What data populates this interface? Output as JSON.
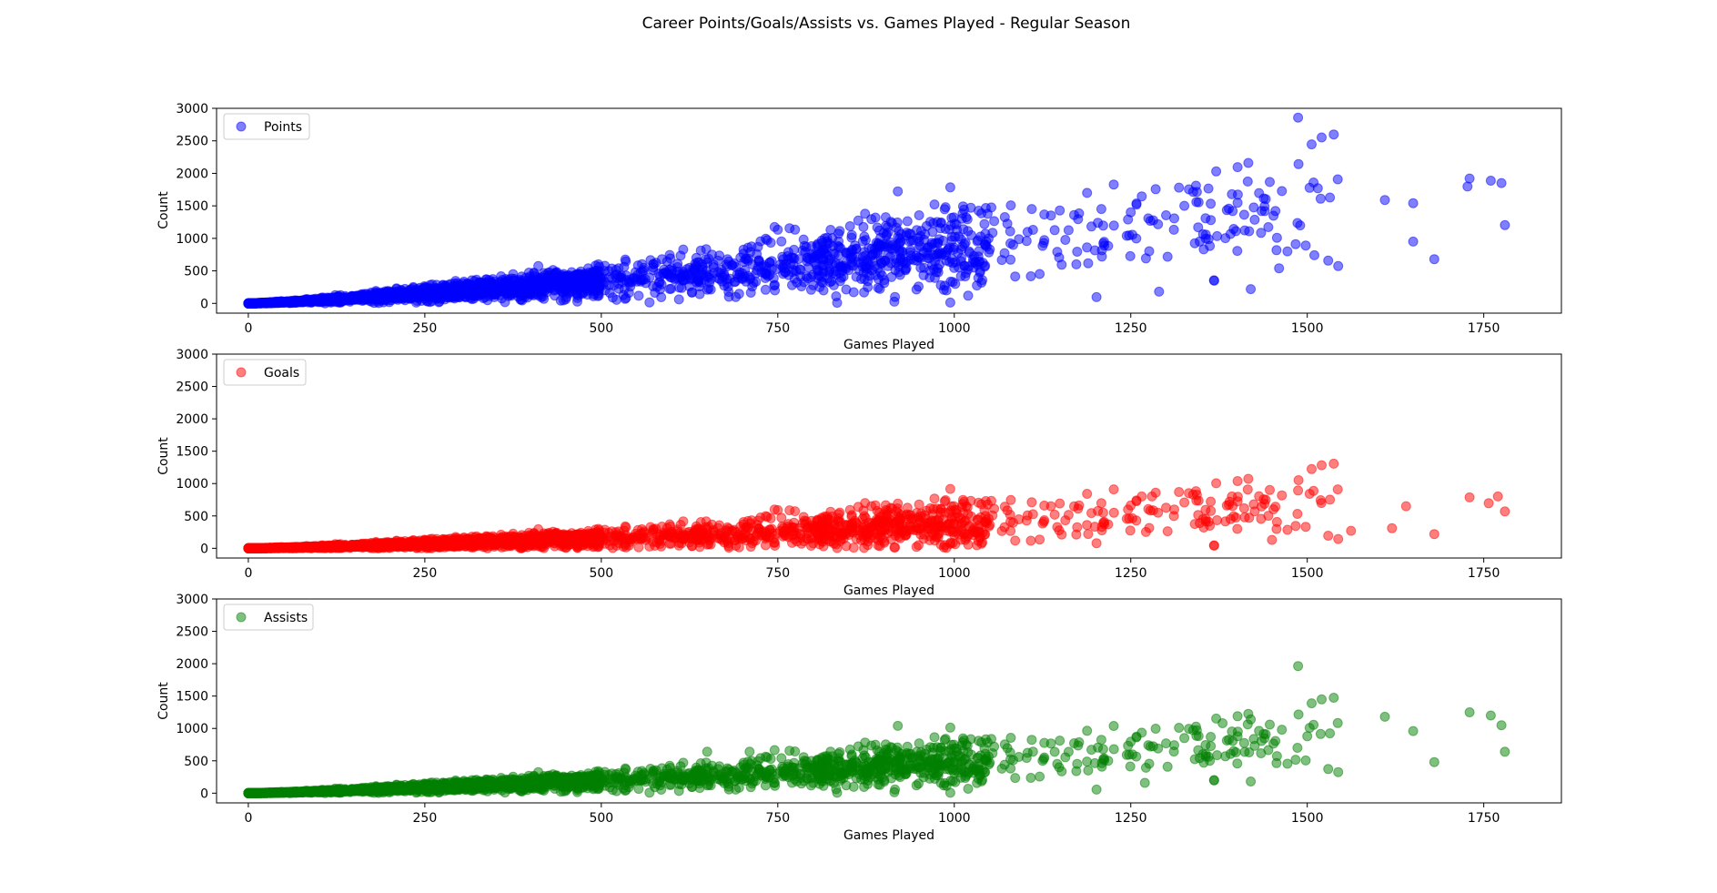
{
  "figure": {
    "title": "Career Points/Goals/Assists vs. Games Played - Regular Season"
  },
  "chart_data": [
    {
      "type": "scatter",
      "xlabel": "Games Played",
      "ylabel": "Count",
      "xlim": [
        -45,
        1860
      ],
      "ylim": [
        -150,
        3000
      ],
      "xticks": [
        "0",
        "250",
        "500",
        "750",
        "1000",
        "1250",
        "1500",
        "1750"
      ],
      "yticks": [
        "0",
        "500",
        "1000",
        "1500",
        "2000",
        "2500",
        "3000"
      ],
      "legend": "top-left",
      "series": [
        {
          "name": "Points",
          "color": "#0000ff",
          "outliers": [
            [
              1487,
              2857
            ],
            [
              920,
              1723
            ],
            [
              750,
              1132
            ],
            [
              1730,
              1921
            ],
            [
              1760,
              1887
            ],
            [
              1775,
              1850
            ],
            [
              1727,
              1798
            ],
            [
              1515,
              1771
            ],
            [
              1360,
              1767
            ],
            [
              1610,
              1590
            ],
            [
              1650,
              1541
            ],
            [
              1780,
              1204
            ],
            [
              1680,
              680
            ],
            [
              1490,
              1200
            ],
            [
              1440,
              1420
            ],
            [
              1420,
              220
            ],
            [
              1290,
              180
            ],
            [
              1460,
              540
            ],
            [
              1510,
              740
            ],
            [
              1650,
              950
            ]
          ]
        },
        {
          "name": "Goals",
          "color": "#ff0000",
          "outliers": [
            [
              1487,
              894
            ],
            [
              1770,
              801
            ],
            [
              1730,
              787
            ],
            [
              1757,
              696
            ],
            [
              1280,
              800
            ],
            [
              1390,
              720
            ],
            [
              1520,
              700
            ],
            [
              1640,
              650
            ],
            [
              1780,
              570
            ],
            [
              1680,
              220
            ],
            [
              1450,
              130
            ],
            [
              1620,
              310
            ],
            [
              1562,
              270
            ],
            [
              920,
              690
            ],
            [
              750,
              590
            ]
          ]
        },
        {
          "name": "Assists",
          "color": "#008000",
          "outliers": [
            [
              1487,
              1963
            ],
            [
              1730,
              1249
            ],
            [
              1760,
              1200
            ],
            [
              1610,
              1180
            ],
            [
              1420,
              1140
            ],
            [
              1380,
              1080
            ],
            [
              920,
              1040
            ],
            [
              1775,
              1050
            ],
            [
              1680,
              480
            ],
            [
              1780,
              640
            ],
            [
              1650,
              960
            ],
            [
              1500,
              880
            ],
            [
              1270,
              160
            ],
            [
              1420,
              180
            ],
            [
              650,
              640
            ],
            [
              710,
              640
            ]
          ]
        }
      ]
    }
  ]
}
